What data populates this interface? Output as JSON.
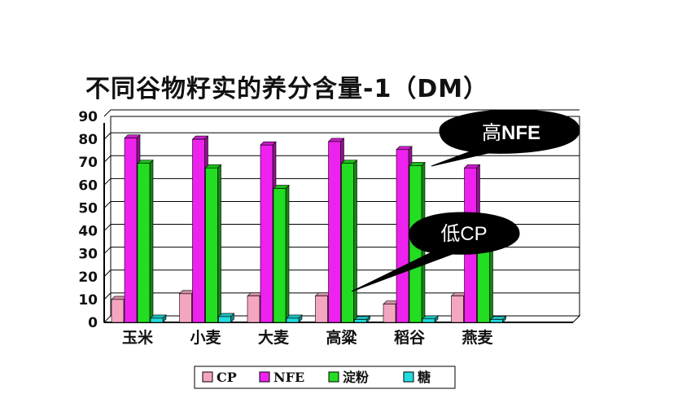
{
  "title": "不同谷物籽实的养分含量-1（DM）",
  "chart_data": {
    "type": "bar",
    "categories": [
      "玉米",
      "小麦",
      "大麦",
      "高粱",
      "稻谷",
      "燕麦"
    ],
    "series": [
      {
        "name": "CP",
        "color": "#f4a6c0",
        "values": [
          10,
          12.5,
          11.5,
          11.5,
          8,
          11.5
        ]
      },
      {
        "name": "NFE",
        "color": "#ee22ee",
        "values": [
          80.5,
          80,
          77.5,
          79,
          75.5,
          67.5
        ]
      },
      {
        "name": "淀粉",
        "color": "#22dd22",
        "values": [
          69.5,
          67.5,
          58.5,
          69.5,
          68.5,
          38
        ]
      },
      {
        "name": "糖",
        "color": "#22dddd",
        "values": [
          1.8,
          2.5,
          1.8,
          1.2,
          1.5,
          1.2
        ]
      }
    ],
    "ylim": [
      0,
      90
    ],
    "yticks": [
      "0",
      "10",
      "20",
      "30",
      "40",
      "50",
      "60",
      "70",
      "80",
      "90"
    ],
    "grid": true,
    "legend": "bottom",
    "annotations": [
      {
        "text_plain": "高",
        "text_bold": "NFE"
      },
      {
        "text_plain": "低",
        "text_bold": "CP"
      }
    ]
  }
}
